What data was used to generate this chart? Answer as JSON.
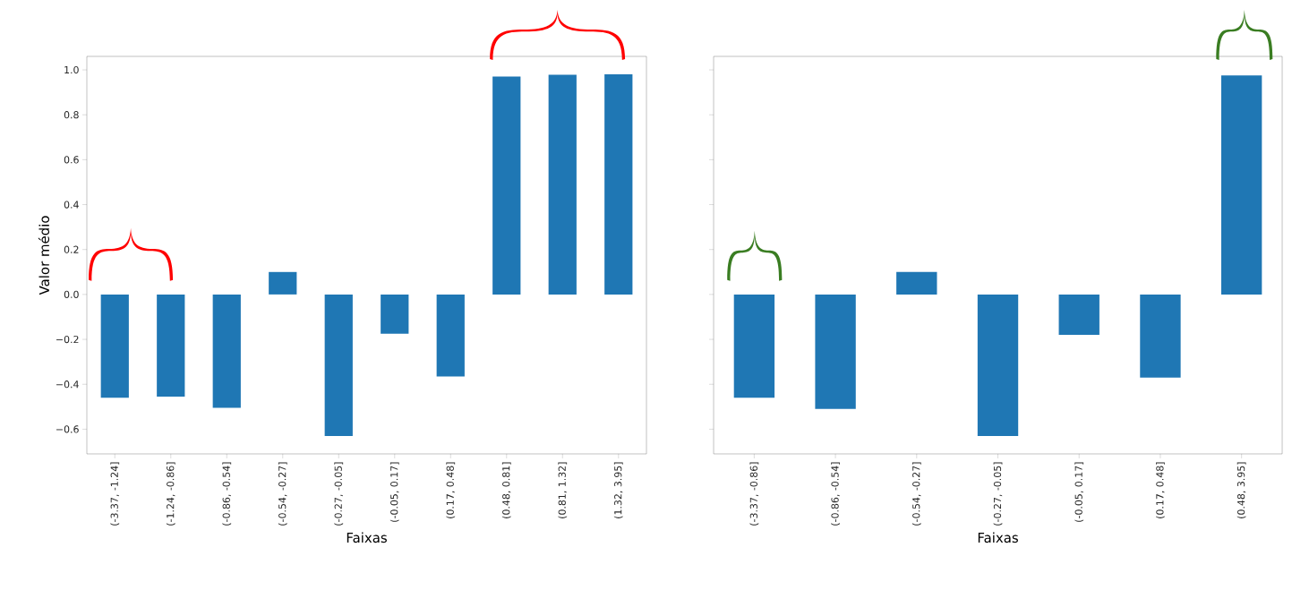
{
  "chart_data": [
    {
      "type": "bar",
      "xlabel": "Faixas",
      "ylabel": "Valor médio",
      "color": "#1f77b4",
      "categories": [
        "(-3.37, -1.24]",
        "(-1.24, -0.86]",
        "(-0.86, -0.54]",
        "(-0.54, -0.27]",
        "(-0.27, -0.05]",
        "(-0.05, 0.17]",
        "(0.17, 0.48]",
        "(0.48, 0.81]",
        "(0.81, 1.32]",
        "(1.32, 3.95]"
      ],
      "values": [
        -0.46,
        -0.455,
        -0.505,
        0.1,
        -0.63,
        -0.175,
        -0.365,
        0.97,
        0.978,
        0.98
      ],
      "ylim": [
        -0.71,
        1.06
      ],
      "yticks": [
        {
          "value": -0.6,
          "label": "−0.6"
        },
        {
          "value": -0.4,
          "label": "−0.4"
        },
        {
          "value": -0.2,
          "label": "−0.2"
        },
        {
          "value": 0,
          "label": "0.0"
        },
        {
          "value": 0.2,
          "label": "0.2"
        },
        {
          "value": 0.4,
          "label": "0.4"
        },
        {
          "value": 0.6,
          "label": "0.6"
        },
        {
          "value": 0.8,
          "label": "0.8"
        },
        {
          "value": 1.0,
          "label": "1.0"
        }
      ]
    },
    {
      "type": "bar",
      "xlabel": "Faixas",
      "color": "#1f77b4",
      "tick_labels": "x",
      "categories": [
        "(-3.37, -0.86]",
        "(-0.86, -0.54]",
        "(-0.54, -0.27]",
        "(-0.27, -0.05]",
        "(-0.05, 0.17]",
        "(0.17, 0.48]",
        "(0.48, 3.95]"
      ],
      "values": [
        -0.46,
        -0.51,
        0.1,
        -0.63,
        -0.18,
        -0.37,
        0.975
      ],
      "ylim": [
        -0.71,
        1.06
      ],
      "yticks": [
        -0.6,
        -0.4,
        -0.2,
        0,
        0.2,
        0.4,
        0.6,
        0.8,
        1.0
      ]
    }
  ]
}
